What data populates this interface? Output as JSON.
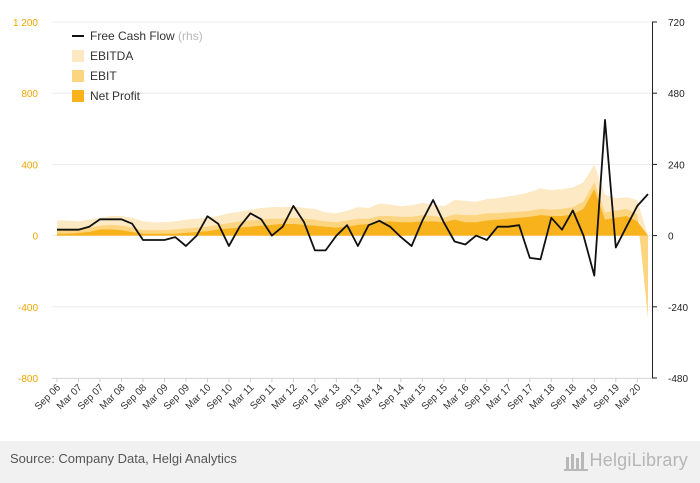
{
  "chart_data": {
    "type": "area",
    "title": "",
    "left_axis": {
      "ticks": [
        "1 200",
        "800",
        "400",
        "0",
        "-400",
        "-800"
      ],
      "tick_values": [
        1200,
        800,
        400,
        0,
        -400,
        -800
      ],
      "range": [
        -800,
        1200
      ],
      "color": "#f0a500"
    },
    "right_axis": {
      "ticks": [
        "720",
        "480",
        "240",
        "0",
        "-240",
        "-480"
      ],
      "tick_values": [
        720,
        480,
        240,
        0,
        -240,
        -480
      ],
      "range": [
        -480,
        720
      ],
      "color": "#222222"
    },
    "categories": [
      "Sep 06",
      "Dec 06",
      "Mar 07",
      "Jun 07",
      "Sep 07",
      "Dec 07",
      "Mar 08",
      "Jun 08",
      "Sep 08",
      "Dec 08",
      "Mar 09",
      "Jun 09",
      "Sep 09",
      "Dec 09",
      "Mar 10",
      "Jun 10",
      "Sep 10",
      "Dec 10",
      "Mar 11",
      "Jun 11",
      "Sep 11",
      "Dec 11",
      "Mar 12",
      "Jun 12",
      "Sep 12",
      "Dec 12",
      "Mar 13",
      "Jun 13",
      "Sep 13",
      "Dec 13",
      "Mar 14",
      "Jun 14",
      "Sep 14",
      "Dec 14",
      "Mar 15",
      "Jun 15",
      "Sep 15",
      "Dec 15",
      "Mar 16",
      "Jun 16",
      "Sep 16",
      "Dec 16",
      "Mar 17",
      "Jun 17",
      "Sep 17",
      "Dec 17",
      "Mar 18",
      "Jun 18",
      "Sep 18",
      "Dec 18",
      "Mar 19",
      "Jun 19",
      "Sep 19",
      "Dec 19",
      "Mar 20",
      "Jun 20"
    ],
    "x_labels": [
      "Sep 06",
      "Mar 07",
      "Sep 07",
      "Mar 08",
      "Sep 08",
      "Mar 09",
      "Sep 09",
      "Mar 10",
      "Sep 10",
      "Mar 11",
      "Sep 11",
      "Mar 12",
      "Sep 12",
      "Mar 13",
      "Sep 13",
      "Mar 14",
      "Sep 14",
      "Mar 15",
      "Sep 15",
      "Mar 16",
      "Sep 16",
      "Mar 17",
      "Sep 17",
      "Mar 18",
      "Sep 18",
      "Mar 19",
      "Sep 19",
      "Mar 20"
    ],
    "series": [
      {
        "name": "EBITDA",
        "axis": "left",
        "color": "#fde9c4",
        "values": [
          85,
          85,
          80,
          90,
          100,
          110,
          110,
          100,
          80,
          75,
          75,
          80,
          90,
          95,
          100,
          110,
          125,
          135,
          145,
          155,
          160,
          160,
          165,
          155,
          150,
          130,
          125,
          140,
          160,
          155,
          180,
          175,
          165,
          170,
          185,
          175,
          165,
          200,
          195,
          190,
          205,
          210,
          220,
          230,
          245,
          265,
          255,
          260,
          270,
          300,
          400,
          230,
          210,
          215,
          200,
          0
        ]
      },
      {
        "name": "EBIT",
        "axis": "left",
        "color": "#fdd480",
        "values": [
          40,
          40,
          40,
          45,
          55,
          60,
          55,
          45,
          30,
          30,
          30,
          35,
          40,
          45,
          50,
          60,
          70,
          80,
          85,
          90,
          95,
          95,
          100,
          95,
          90,
          80,
          75,
          85,
          95,
          95,
          110,
          110,
          105,
          105,
          115,
          110,
          100,
          120,
          115,
          115,
          125,
          125,
          130,
          135,
          140,
          150,
          145,
          150,
          160,
          190,
          300,
          130,
          140,
          150,
          120,
          -460
        ]
      },
      {
        "name": "Net Profit",
        "axis": "left",
        "color": "#f8b21c",
        "values": [
          10,
          10,
          15,
          20,
          35,
          35,
          30,
          20,
          10,
          10,
          10,
          10,
          15,
          20,
          25,
          35,
          40,
          45,
          50,
          55,
          60,
          65,
          65,
          60,
          55,
          50,
          45,
          50,
          60,
          65,
          75,
          80,
          75,
          75,
          80,
          80,
          75,
          90,
          75,
          75,
          85,
          90,
          95,
          100,
          105,
          115,
          110,
          110,
          120,
          150,
          260,
          90,
          100,
          110,
          80,
          0
        ]
      },
      {
        "name": "Free Cash Flow",
        "note": "(rhs)",
        "axis": "right",
        "color": "#111111",
        "values": [
          20,
          20,
          20,
          30,
          55,
          55,
          55,
          40,
          -15,
          -15,
          -15,
          -5,
          -35,
          0,
          65,
          40,
          -35,
          30,
          75,
          55,
          0,
          30,
          100,
          45,
          -50,
          -50,
          0,
          35,
          -35,
          35,
          50,
          30,
          -5,
          -35,
          50,
          120,
          45,
          -20,
          -30,
          0,
          -15,
          30,
          30,
          35,
          -75,
          -80,
          60,
          20,
          85,
          0,
          -135,
          390,
          -40,
          30,
          100,
          140
        ]
      }
    ],
    "legend": {
      "placement": "top-left",
      "entries": [
        "Free Cash Flow",
        "EBITDA",
        "EBIT",
        "Net Profit"
      ]
    },
    "grid": true
  },
  "footer": {
    "source": "Source: Company Data, Helgi Analytics",
    "logo": "HelgiLibrary"
  }
}
